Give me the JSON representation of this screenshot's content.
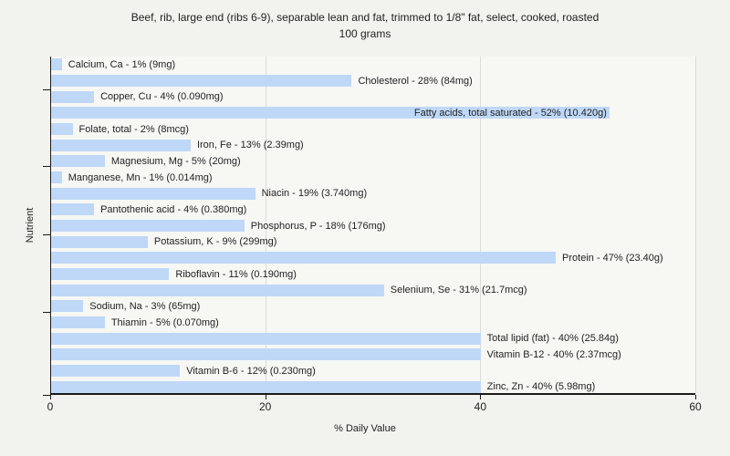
{
  "title": {
    "line1": "Beef, rib, large end (ribs 6-9), separable lean and fat, trimmed to 1/8\" fat, select, cooked, roasted",
    "line2": "100 grams"
  },
  "axes": {
    "x_label": "% Daily Value",
    "y_label": "Nutrient"
  },
  "colors": {
    "page_bg": "#f2f2ee",
    "plot_bg": "#f7f7f4",
    "bar_fill": "#bfd8f7",
    "grid": "#dcdcd6",
    "axis": "#1a1a1a",
    "text": "#1f1f1f"
  },
  "chart_data": {
    "type": "bar",
    "orientation": "horizontal",
    "title": "Beef, rib, large end (ribs 6-9), separable lean and fat, trimmed to 1/8\" fat, select, cooked, roasted — 100 grams",
    "xlabel": "% Daily Value",
    "ylabel": "Nutrient",
    "xlim": [
      0,
      60
    ],
    "x_ticks": [
      0,
      20,
      40,
      60
    ],
    "grid": "vertical-only",
    "legend": "none",
    "bars": [
      {
        "nutrient": "Calcium, Ca",
        "percent_dv": 1,
        "amount": "9mg",
        "label": "Calcium, Ca - 1% (9mg)",
        "label_inside": false
      },
      {
        "nutrient": "Cholesterol",
        "percent_dv": 28,
        "amount": "84mg",
        "label": "Cholesterol - 28% (84mg)",
        "label_inside": false
      },
      {
        "nutrient": "Copper, Cu",
        "percent_dv": 4,
        "amount": "0.090mg",
        "label": "Copper, Cu - 4% (0.090mg)",
        "label_inside": false
      },
      {
        "nutrient": "Fatty acids, total saturated",
        "percent_dv": 52,
        "amount": "10.420g",
        "label": "Fatty acids, total saturated - 52% (10.420g)",
        "label_inside": true
      },
      {
        "nutrient": "Folate, total",
        "percent_dv": 2,
        "amount": "8mcg",
        "label": "Folate, total - 2% (8mcg)",
        "label_inside": false
      },
      {
        "nutrient": "Iron, Fe",
        "percent_dv": 13,
        "amount": "2.39mg",
        "label": "Iron, Fe - 13% (2.39mg)",
        "label_inside": false
      },
      {
        "nutrient": "Magnesium, Mg",
        "percent_dv": 5,
        "amount": "20mg",
        "label": "Magnesium, Mg - 5% (20mg)",
        "label_inside": false
      },
      {
        "nutrient": "Manganese, Mn",
        "percent_dv": 1,
        "amount": "0.014mg",
        "label": "Manganese, Mn - 1% (0.014mg)",
        "label_inside": false
      },
      {
        "nutrient": "Niacin",
        "percent_dv": 19,
        "amount": "3.740mg",
        "label": "Niacin - 19% (3.740mg)",
        "label_inside": false
      },
      {
        "nutrient": "Pantothenic acid",
        "percent_dv": 4,
        "amount": "0.380mg",
        "label": "Pantothenic acid - 4% (0.380mg)",
        "label_inside": false
      },
      {
        "nutrient": "Phosphorus, P",
        "percent_dv": 18,
        "amount": "176mg",
        "label": "Phosphorus, P - 18% (176mg)",
        "label_inside": false
      },
      {
        "nutrient": "Potassium, K",
        "percent_dv": 9,
        "amount": "299mg",
        "label": "Potassium, K - 9% (299mg)",
        "label_inside": false
      },
      {
        "nutrient": "Protein",
        "percent_dv": 47,
        "amount": "23.40g",
        "label": "Protein - 47% (23.40g)",
        "label_inside": false
      },
      {
        "nutrient": "Riboflavin",
        "percent_dv": 11,
        "amount": "0.190mg",
        "label": "Riboflavin - 11% (0.190mg)",
        "label_inside": false
      },
      {
        "nutrient": "Selenium, Se",
        "percent_dv": 31,
        "amount": "21.7mcg",
        "label": "Selenium, Se - 31% (21.7mcg)",
        "label_inside": false
      },
      {
        "nutrient": "Sodium, Na",
        "percent_dv": 3,
        "amount": "65mg",
        "label": "Sodium, Na - 3% (65mg)",
        "label_inside": false
      },
      {
        "nutrient": "Thiamin",
        "percent_dv": 5,
        "amount": "0.070mg",
        "label": "Thiamin - 5% (0.070mg)",
        "label_inside": false
      },
      {
        "nutrient": "Total lipid (fat)",
        "percent_dv": 40,
        "amount": "25.84g",
        "label": "Total lipid (fat) - 40% (25.84g)",
        "label_inside": false
      },
      {
        "nutrient": "Vitamin B-12",
        "percent_dv": 40,
        "amount": "2.37mcg",
        "label": "Vitamin B-12 - 40% (2.37mcg)",
        "label_inside": false
      },
      {
        "nutrient": "Vitamin B-6",
        "percent_dv": 12,
        "amount": "0.230mg",
        "label": "Vitamin B-6 - 12% (0.230mg)",
        "label_inside": false
      },
      {
        "nutrient": "Zinc, Zn",
        "percent_dv": 40,
        "amount": "5.98mg",
        "label": "Zinc, Zn - 40% (5.98mg)",
        "label_inside": false
      }
    ]
  }
}
